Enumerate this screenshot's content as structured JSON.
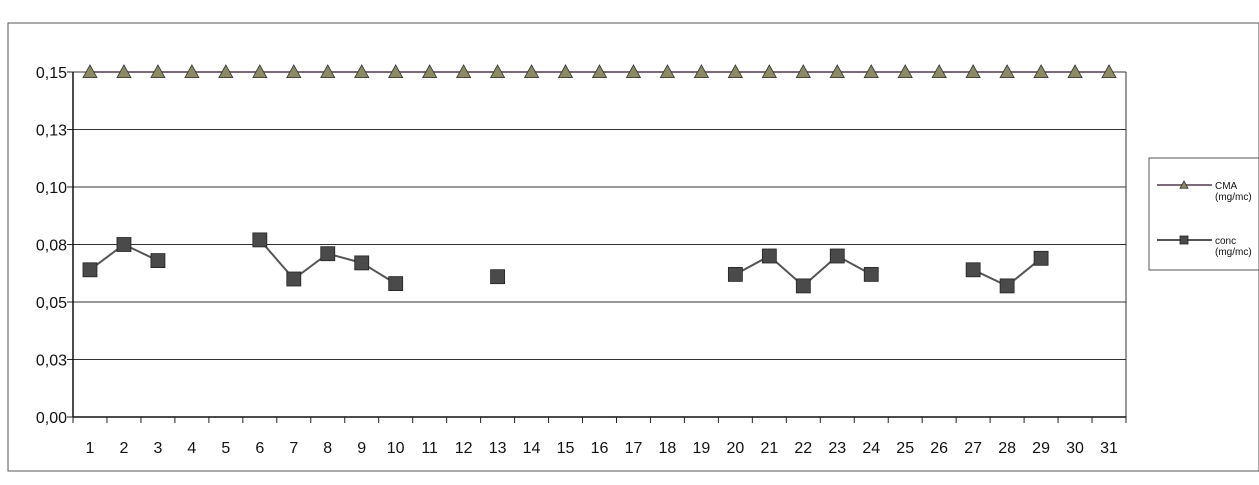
{
  "chart_data": {
    "type": "line",
    "x": [
      1,
      2,
      3,
      4,
      5,
      6,
      7,
      8,
      9,
      10,
      11,
      12,
      13,
      14,
      15,
      16,
      17,
      18,
      19,
      20,
      21,
      22,
      23,
      24,
      25,
      26,
      27,
      28,
      29,
      30,
      31
    ],
    "x_tick_labels": [
      "1",
      "2",
      "3",
      "4",
      "5",
      "6",
      "7",
      "8",
      "9",
      "10",
      "11",
      "12",
      "13",
      "14",
      "15",
      "16",
      "17",
      "18",
      "19",
      "20",
      "21",
      "22",
      "23",
      "24",
      "25",
      "26",
      "27",
      "28",
      "29",
      "30",
      "31"
    ],
    "y_tick_labels": [
      "0,00",
      "0,03",
      "0,05",
      "0,08",
      "0,10",
      "0,13",
      "0,15"
    ],
    "y_tick_values": [
      0,
      0.025,
      0.05,
      0.075,
      0.1,
      0.125,
      0.15
    ],
    "ylim": [
      0,
      0.15
    ],
    "grid": true,
    "legend_position": "right",
    "series": [
      {
        "name": "CMA (mg/mc)",
        "legend_lines": [
          "CMA",
          "(mg/mc)"
        ],
        "marker": "triangle",
        "line_color": "#7a6a7a",
        "marker_color": "#8c8a62",
        "values": [
          0.15,
          0.15,
          0.15,
          0.15,
          0.15,
          0.15,
          0.15,
          0.15,
          0.15,
          0.15,
          0.15,
          0.15,
          0.15,
          0.15,
          0.15,
          0.15,
          0.15,
          0.15,
          0.15,
          0.15,
          0.15,
          0.15,
          0.15,
          0.15,
          0.15,
          0.15,
          0.15,
          0.15,
          0.15,
          0.15,
          0.15
        ]
      },
      {
        "name": "conc (mg/mc)",
        "legend_lines": [
          "conc",
          "(mg/mc)"
        ],
        "marker": "square",
        "line_color": "#555555",
        "marker_color": "#4a4a4a",
        "values": [
          0.064,
          0.075,
          0.068,
          null,
          null,
          0.077,
          0.06,
          0.071,
          0.067,
          0.058,
          null,
          null,
          0.061,
          null,
          null,
          null,
          null,
          null,
          null,
          0.062,
          0.07,
          0.057,
          0.07,
          0.062,
          null,
          null,
          0.064,
          0.057,
          0.069,
          null,
          null
        ]
      }
    ]
  }
}
